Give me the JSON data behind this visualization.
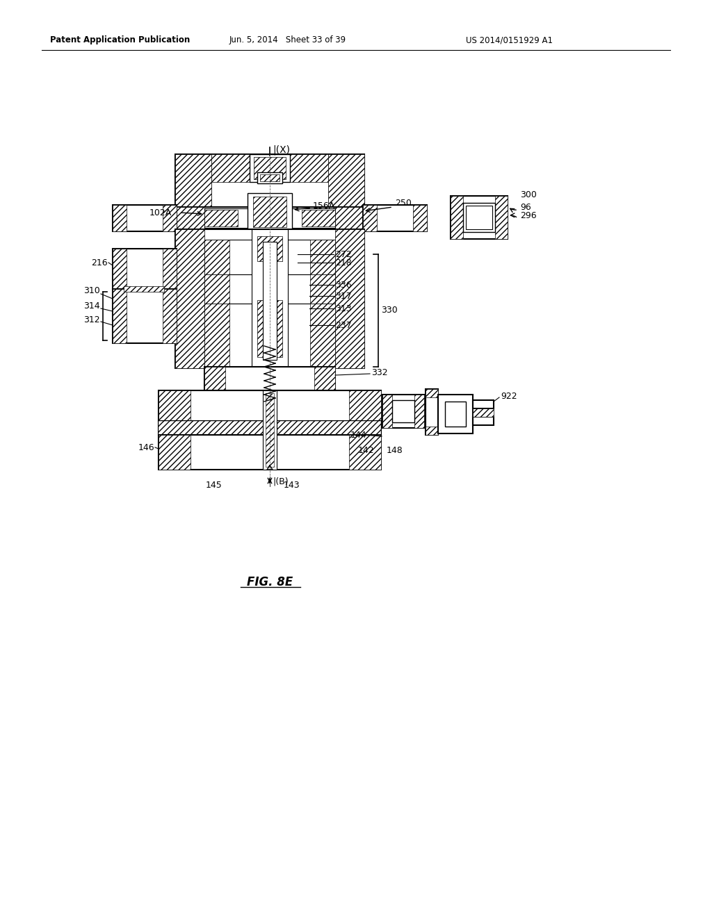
{
  "bg_color": "#ffffff",
  "line_color": "#000000",
  "header": {
    "left": "Patent Application Publication",
    "center": "Jun. 5, 2014   Sheet 33 of 39",
    "right": "US 2014/0151929 A1"
  },
  "fig_label": "FIG. 8E",
  "labels": {
    "X": "|(X)",
    "B": "|(B)",
    "102A": "102A",
    "156A": "156A",
    "250": "250",
    "300": "300",
    "96": "96",
    "296": "296",
    "272": "272",
    "218": "218",
    "216": "216",
    "310": "310",
    "314": "314",
    "312": "312",
    "336": "336",
    "317": "317",
    "313": "313",
    "330": "330",
    "237": "237",
    "332": "332",
    "146": "146",
    "145": "145",
    "143": "143",
    "144": "144",
    "142": "142",
    "148": "148",
    "922": "922"
  }
}
